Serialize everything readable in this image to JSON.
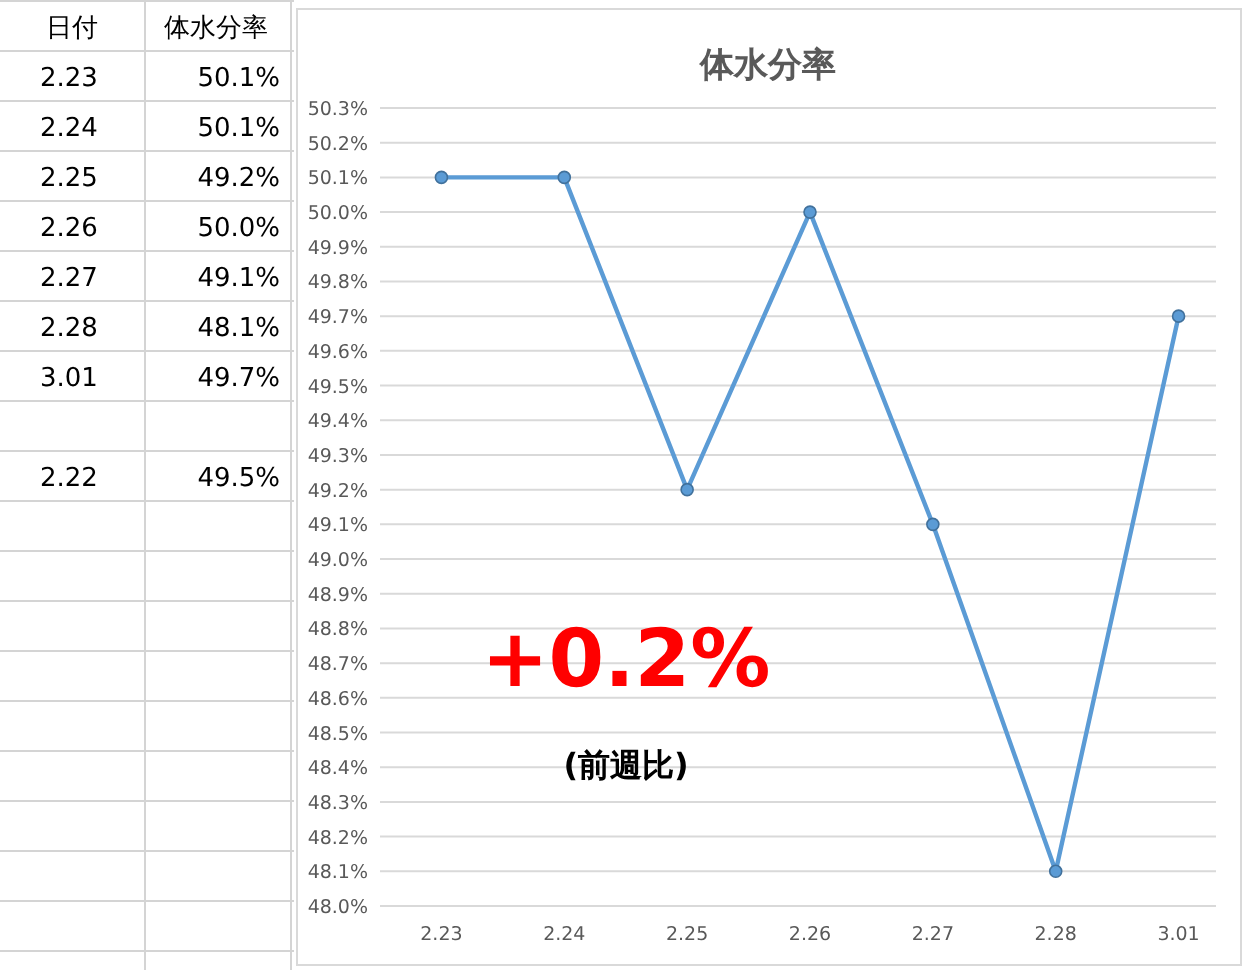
{
  "chart_data": {
    "type": "line",
    "title": "体水分率",
    "categories": [
      "2.23",
      "2.24",
      "2.25",
      "2.26",
      "2.27",
      "2.28",
      "3.01"
    ],
    "series": [
      {
        "color": "#5b9bd5",
        "values": [
          50.1,
          50.1,
          49.2,
          50.0,
          49.1,
          48.1,
          49.7
        ]
      }
    ],
    "ylim": [
      48.0,
      50.3
    ],
    "yticks": [
      {
        "value": 48.0,
        "label": "48.0%"
      },
      {
        "value": 48.1,
        "label": "48.1%"
      },
      {
        "value": 48.2,
        "label": "48.2%"
      },
      {
        "value": 48.3,
        "label": "48.3%"
      },
      {
        "value": 48.4,
        "label": "48.4%"
      },
      {
        "value": 48.5,
        "label": "48.5%"
      },
      {
        "value": 48.6,
        "label": "48.6%"
      },
      {
        "value": 48.7,
        "label": "48.7%"
      },
      {
        "value": 48.8,
        "label": "48.8%"
      },
      {
        "value": 48.9,
        "label": "48.9%"
      },
      {
        "value": 49.0,
        "label": "49.0%"
      },
      {
        "value": 49.1,
        "label": "49.1%"
      },
      {
        "value": 49.2,
        "label": "49.2%"
      },
      {
        "value": 49.3,
        "label": "49.3%"
      },
      {
        "value": 49.4,
        "label": "49.4%"
      },
      {
        "value": 49.5,
        "label": "49.5%"
      },
      {
        "value": 49.6,
        "label": "49.6%"
      },
      {
        "value": 49.7,
        "label": "49.7%"
      },
      {
        "value": 49.8,
        "label": "49.8%"
      },
      {
        "value": 49.9,
        "label": "49.9%"
      },
      {
        "value": 50.0,
        "label": "50.0%"
      },
      {
        "value": 50.1,
        "label": "50.1%"
      },
      {
        "value": 50.2,
        "label": "50.2%"
      },
      {
        "value": 50.3,
        "label": "50.3%"
      }
    ],
    "grid": "y",
    "marker": "circle",
    "line_style": "solid",
    "annotations": [
      "日付",
      "体水分率",
      "2.23",
      "50.1%",
      "2.24",
      "50.1%",
      "2.25",
      "49.2%",
      "2.26",
      "50.0%",
      "2.27",
      "49.1%",
      "2.28",
      "48.1%",
      "3.01",
      "49.7%",
      "2.22",
      "49.5%",
      "+0.2%",
      "(前週比)"
    ]
  }
}
